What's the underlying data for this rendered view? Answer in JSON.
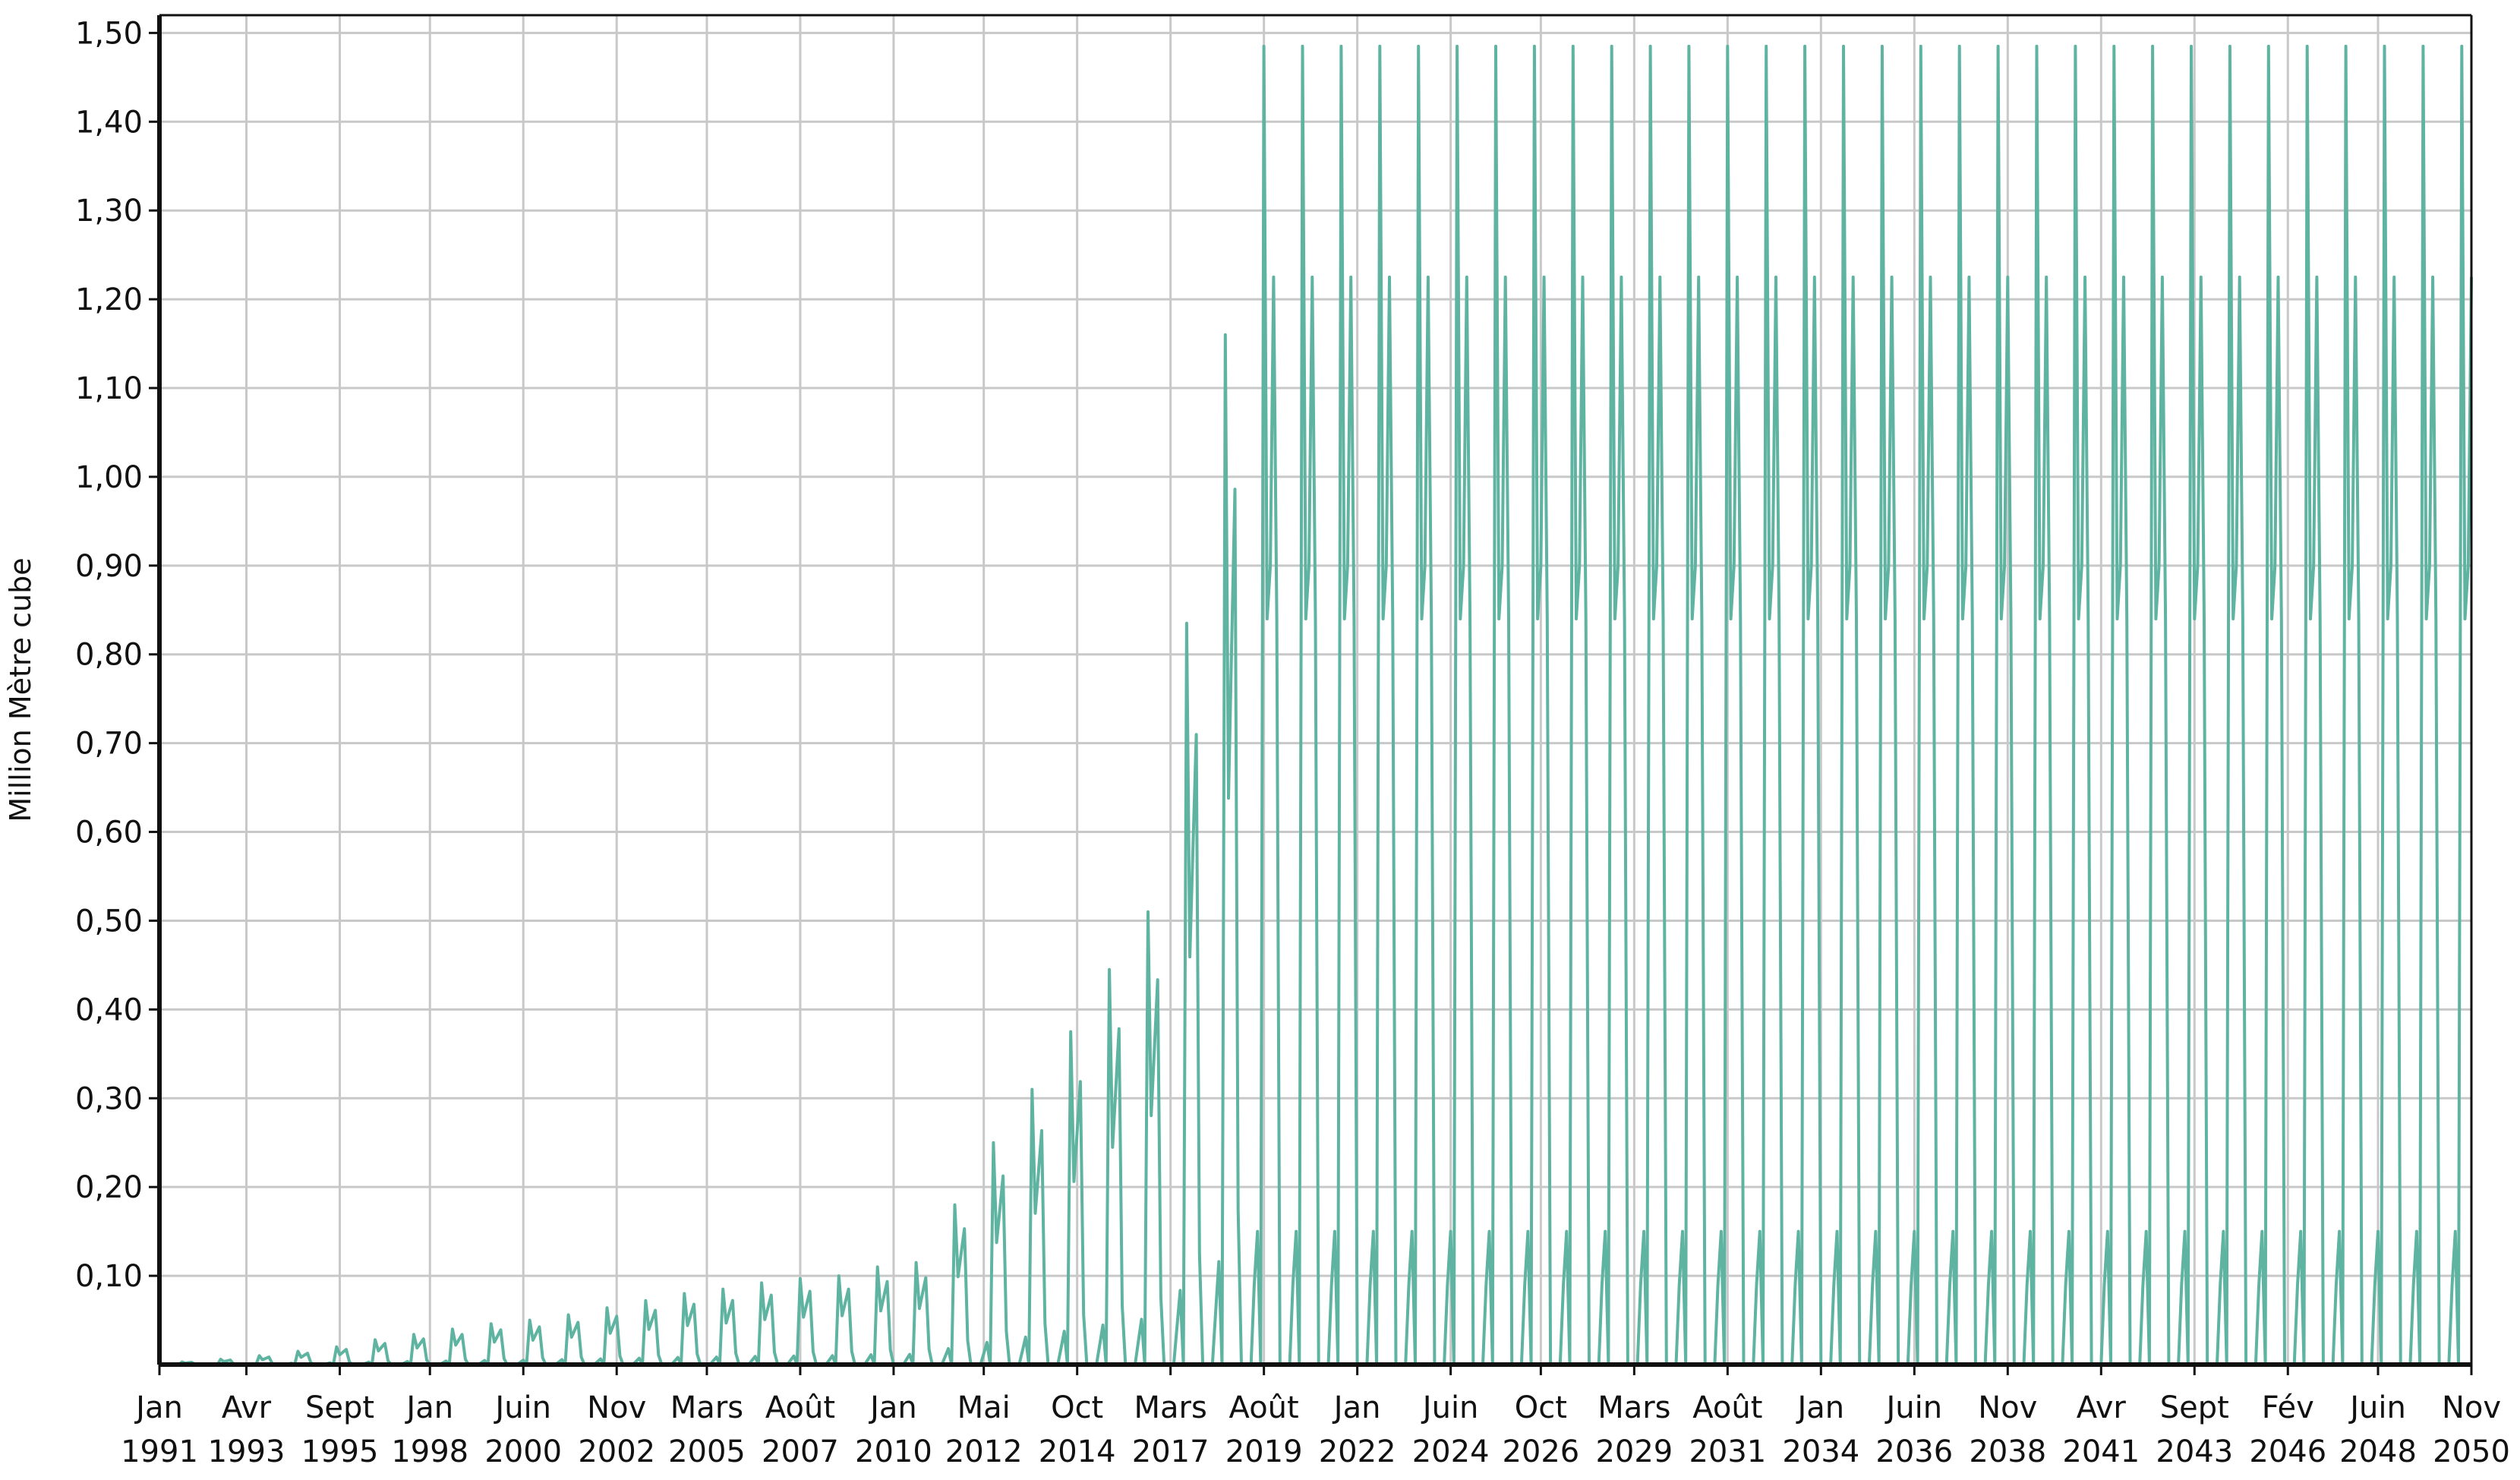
{
  "chart_data": {
    "type": "line",
    "title": "",
    "xlabel": "",
    "ylabel": "Million Mètre cube",
    "x_range": [
      "Jan 1991",
      "Nov 2050"
    ],
    "ylim": [
      0,
      1.52
    ],
    "grid": true,
    "legend": "none",
    "y_ticks": [
      {
        "value": 0.1,
        "label": "0,10"
      },
      {
        "value": 0.2,
        "label": "0,20"
      },
      {
        "value": 0.3,
        "label": "0,30"
      },
      {
        "value": 0.4,
        "label": "0,40"
      },
      {
        "value": 0.5,
        "label": "0,50"
      },
      {
        "value": 0.6,
        "label": "0,60"
      },
      {
        "value": 0.7,
        "label": "0,70"
      },
      {
        "value": 0.8,
        "label": "0,80"
      },
      {
        "value": 0.9,
        "label": "0,90"
      },
      {
        "value": 1.0,
        "label": "1,00"
      },
      {
        "value": 1.1,
        "label": "1,10"
      },
      {
        "value": 1.2,
        "label": "1,20"
      },
      {
        "value": 1.3,
        "label": "1,30"
      },
      {
        "value": 1.4,
        "label": "1,40"
      },
      {
        "value": 1.5,
        "label": "1,50"
      }
    ],
    "x_ticks": [
      {
        "date": "1991-01",
        "month": "Jan",
        "year": "1991"
      },
      {
        "date": "1993-04",
        "month": "Avr",
        "year": "1993"
      },
      {
        "date": "1995-09",
        "month": "Sept",
        "year": "1995"
      },
      {
        "date": "1998-01",
        "month": "Jan",
        "year": "1998"
      },
      {
        "date": "2000-06",
        "month": "Juin",
        "year": "2000"
      },
      {
        "date": "2002-11",
        "month": "Nov",
        "year": "2002"
      },
      {
        "date": "2005-03",
        "month": "Mars",
        "year": "2005"
      },
      {
        "date": "2007-08",
        "month": "Août",
        "year": "2007"
      },
      {
        "date": "2010-01",
        "month": "Jan",
        "year": "2010"
      },
      {
        "date": "2012-05",
        "month": "Mai",
        "year": "2012"
      },
      {
        "date": "2014-10",
        "month": "Oct",
        "year": "2014"
      },
      {
        "date": "2017-03",
        "month": "Mars",
        "year": "2017"
      },
      {
        "date": "2019-08",
        "month": "Août",
        "year": "2019"
      },
      {
        "date": "2022-01",
        "month": "Jan",
        "year": "2022"
      },
      {
        "date": "2024-06",
        "month": "Juin",
        "year": "2024"
      },
      {
        "date": "2026-10",
        "month": "Oct",
        "year": "2026"
      },
      {
        "date": "2029-03",
        "month": "Mars",
        "year": "2029"
      },
      {
        "date": "2031-08",
        "month": "Août",
        "year": "2031"
      },
      {
        "date": "2034-01",
        "month": "Jan",
        "year": "2034"
      },
      {
        "date": "2036-06",
        "month": "Juin",
        "year": "2036"
      },
      {
        "date": "2038-11",
        "month": "Nov",
        "year": "2038"
      },
      {
        "date": "2041-04",
        "month": "Avr",
        "year": "2041"
      },
      {
        "date": "2043-09",
        "month": "Sept",
        "year": "2043"
      },
      {
        "date": "2046-02",
        "month": "Fév",
        "year": "2046"
      },
      {
        "date": "2048-06",
        "month": "Juin",
        "year": "2048"
      },
      {
        "date": "2050-11",
        "month": "Nov",
        "year": "2050"
      }
    ],
    "series": [
      {
        "color": "#5fb3a1",
        "seasonal_profile_by_year": [
          {
            "year": 1991,
            "peak": 0.003
          },
          {
            "year": 1992,
            "peak": 0.006
          },
          {
            "year": 1993,
            "peak": 0.01
          },
          {
            "year": 1994,
            "peak": 0.015
          },
          {
            "year": 1995,
            "peak": 0.02
          },
          {
            "year": 1996,
            "peak": 0.028
          },
          {
            "year": 1997,
            "peak": 0.034
          },
          {
            "year": 1998,
            "peak": 0.04
          },
          {
            "year": 1999,
            "peak": 0.046
          },
          {
            "year": 2000,
            "peak": 0.05
          },
          {
            "year": 2001,
            "peak": 0.056
          },
          {
            "year": 2002,
            "peak": 0.064
          },
          {
            "year": 2003,
            "peak": 0.072
          },
          {
            "year": 2004,
            "peak": 0.08
          },
          {
            "year": 2005,
            "peak": 0.085
          },
          {
            "year": 2006,
            "peak": 0.092
          },
          {
            "year": 2007,
            "peak": 0.097
          },
          {
            "year": 2008,
            "peak": 0.1
          },
          {
            "year": 2009,
            "peak": 0.11
          },
          {
            "year": 2010,
            "peak": 0.115
          },
          {
            "year": 2011,
            "peak": 0.18
          },
          {
            "year": 2012,
            "peak": 0.25
          },
          {
            "year": 2013,
            "peak": 0.31
          },
          {
            "year": 2014,
            "peak": 0.375
          },
          {
            "year": 2015,
            "peak": 0.445
          },
          {
            "year": 2016,
            "peak": 0.51
          },
          {
            "year": 2017,
            "peak": 0.835
          },
          {
            "year": 2018,
            "peak": 1.16
          },
          {
            "year": 2019,
            "peak": 1.485
          }
        ],
        "steady_state_from_2019": {
          "annual_pattern": [
            {
              "month": "Jan",
              "value": 0.0
            },
            {
              "month": "Fév",
              "value": 0.0
            },
            {
              "month": "Mars",
              "value": 0.0
            },
            {
              "month": "Avr",
              "value": 0.0
            },
            {
              "month": "Mai",
              "value": 0.09
            },
            {
              "month": "Juin",
              "value": 0.15
            },
            {
              "month": "Juil",
              "value": 0.0
            },
            {
              "month": "Août",
              "value": 1.485
            },
            {
              "month": "Sept",
              "value": 0.84
            },
            {
              "month": "Oct",
              "value": 0.9
            },
            {
              "month": "Nov",
              "value": 1.225
            },
            {
              "month": "Déc",
              "value": 0.84
            }
          ]
        }
      }
    ]
  }
}
